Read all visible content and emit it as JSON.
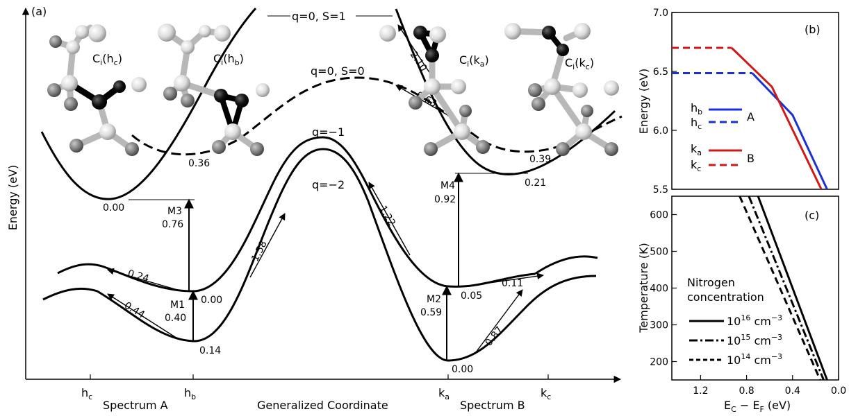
{
  "panel_a": {
    "label": "(a)",
    "y_axis_label": "Energy (eV)",
    "x_axis_label": "Generalized Coordinate",
    "spectrum_a": "Spectrum A",
    "spectrum_b": "Spectrum B",
    "x_ticks": [
      {
        "base": "h",
        "sub": "c"
      },
      {
        "base": "h",
        "sub": "b"
      },
      {
        "base": "k",
        "sub": "a"
      },
      {
        "base": "k",
        "sub": "c"
      }
    ],
    "state_labels": {
      "neutral_s1": "q=0, S=1",
      "neutral_s0": "q=0, S=0",
      "q_minus1": "q=−1",
      "q_minus2": "q=−2"
    },
    "structures": [
      {
        "base": "C",
        "sub": "i",
        "site_base": "h",
        "site_sub": "c"
      },
      {
        "base": "C",
        "sub": "i",
        "site_base": "h",
        "site_sub": "b"
      },
      {
        "base": "C",
        "sub": "i",
        "site_base": "k",
        "site_sub": "a"
      },
      {
        "base": "C",
        "sub": "i",
        "site_base": "k",
        "site_sub": "c"
      }
    ],
    "energy_labels": {
      "s1_hc": "0.00",
      "s0_hb": "0.36",
      "s0_kc": "0.39",
      "s1_kc": "0.21",
      "q1_hb": "0.00",
      "q1_ka": "0.05",
      "q2_hb": "0.14",
      "q2_ka": "0.00"
    },
    "barrier_labels": {
      "b_210": "2.10",
      "b_063": "0.63",
      "b_158": "1.58",
      "b_122": "1.22",
      "b_024": "0.24",
      "b_044": "0.44",
      "b_011": "0.11",
      "b_087": "0.87"
    },
    "transitions": [
      {
        "name": "M1",
        "value": "0.40"
      },
      {
        "name": "M2",
        "value": "0.59"
      },
      {
        "name": "M3",
        "value": "0.76"
      },
      {
        "name": "M4",
        "value": "0.92"
      }
    ]
  },
  "panel_b": {
    "label": "(b)",
    "y_axis_label": "Energy (eV)",
    "y_ticks": [
      "7.0",
      "6.5",
      "6.0",
      "5.5"
    ],
    "legend": [
      {
        "base": "h",
        "sub": "b",
        "style": "solid",
        "color": "#1a2fd6"
      },
      {
        "base": "h",
        "sub": "c",
        "style": "dashed",
        "color": "#1a2fd6"
      },
      {
        "base": "k",
        "sub": "a",
        "style": "solid",
        "color": "#d01818"
      },
      {
        "base": "k",
        "sub": "c",
        "style": "dashed",
        "color": "#d01818"
      }
    ],
    "group_labels": [
      "A",
      "B"
    ],
    "chart_data": {
      "type": "line",
      "x_units": "eV (Ec - EF)",
      "ylim": [
        5.5,
        7.0
      ],
      "xlim": [
        1.45,
        0.0
      ],
      "series": [
        {
          "color": "#1a2fd6",
          "style": "dashed",
          "x": [
            1.45,
            0.75
          ],
          "y": [
            6.485,
            6.485
          ]
        },
        {
          "color": "#1a2fd6",
          "style": "solid",
          "x": [
            0.75,
            0.4,
            0.1
          ],
          "y": [
            6.485,
            6.13,
            5.5
          ]
        },
        {
          "color": "#d01818",
          "style": "dashed",
          "x": [
            1.45,
            0.93
          ],
          "y": [
            6.7,
            6.7
          ]
        },
        {
          "color": "#d01818",
          "style": "solid",
          "x": [
            0.93,
            0.58,
            0.15
          ],
          "y": [
            6.7,
            6.37,
            5.5
          ]
        }
      ]
    }
  },
  "panel_c": {
    "label": "(c)",
    "y_axis_label": "Temperature (K)",
    "x_axis_label_base": "E",
    "x_axis_label_sub1": "C",
    "x_axis_label_mid": " − E",
    "x_axis_label_sub2": "F",
    "x_axis_label_tail": " (eV)",
    "x_ticks": [
      "1.2",
      "0.8",
      "0.4",
      "0.0"
    ],
    "y_ticks": [
      "600",
      "500",
      "400",
      "300",
      "200"
    ],
    "legend_title_1": "Nitrogen",
    "legend_title_2": "concentration",
    "legend": [
      {
        "base": "10",
        "exp": "16",
        "unit": " cm",
        "unit_exp": "−3",
        "style": "solid"
      },
      {
        "base": "10",
        "exp": "15",
        "unit": " cm",
        "unit_exp": "−3",
        "style": "dashdot"
      },
      {
        "base": "10",
        "exp": "14",
        "unit": " cm",
        "unit_exp": "−3",
        "style": "dashed"
      }
    ],
    "chart_data": {
      "type": "line",
      "xlim": [
        1.45,
        0.0
      ],
      "ylim": [
        150,
        650
      ],
      "series": [
        {
          "style": "solid",
          "x": [
            0.7,
            0.1
          ],
          "y": [
            650,
            150
          ]
        },
        {
          "style": "dashdot",
          "x": [
            0.78,
            0.13
          ],
          "y": [
            650,
            150
          ]
        },
        {
          "style": "dashed",
          "x": [
            0.86,
            0.16
          ],
          "y": [
            650,
            150
          ]
        }
      ]
    }
  }
}
